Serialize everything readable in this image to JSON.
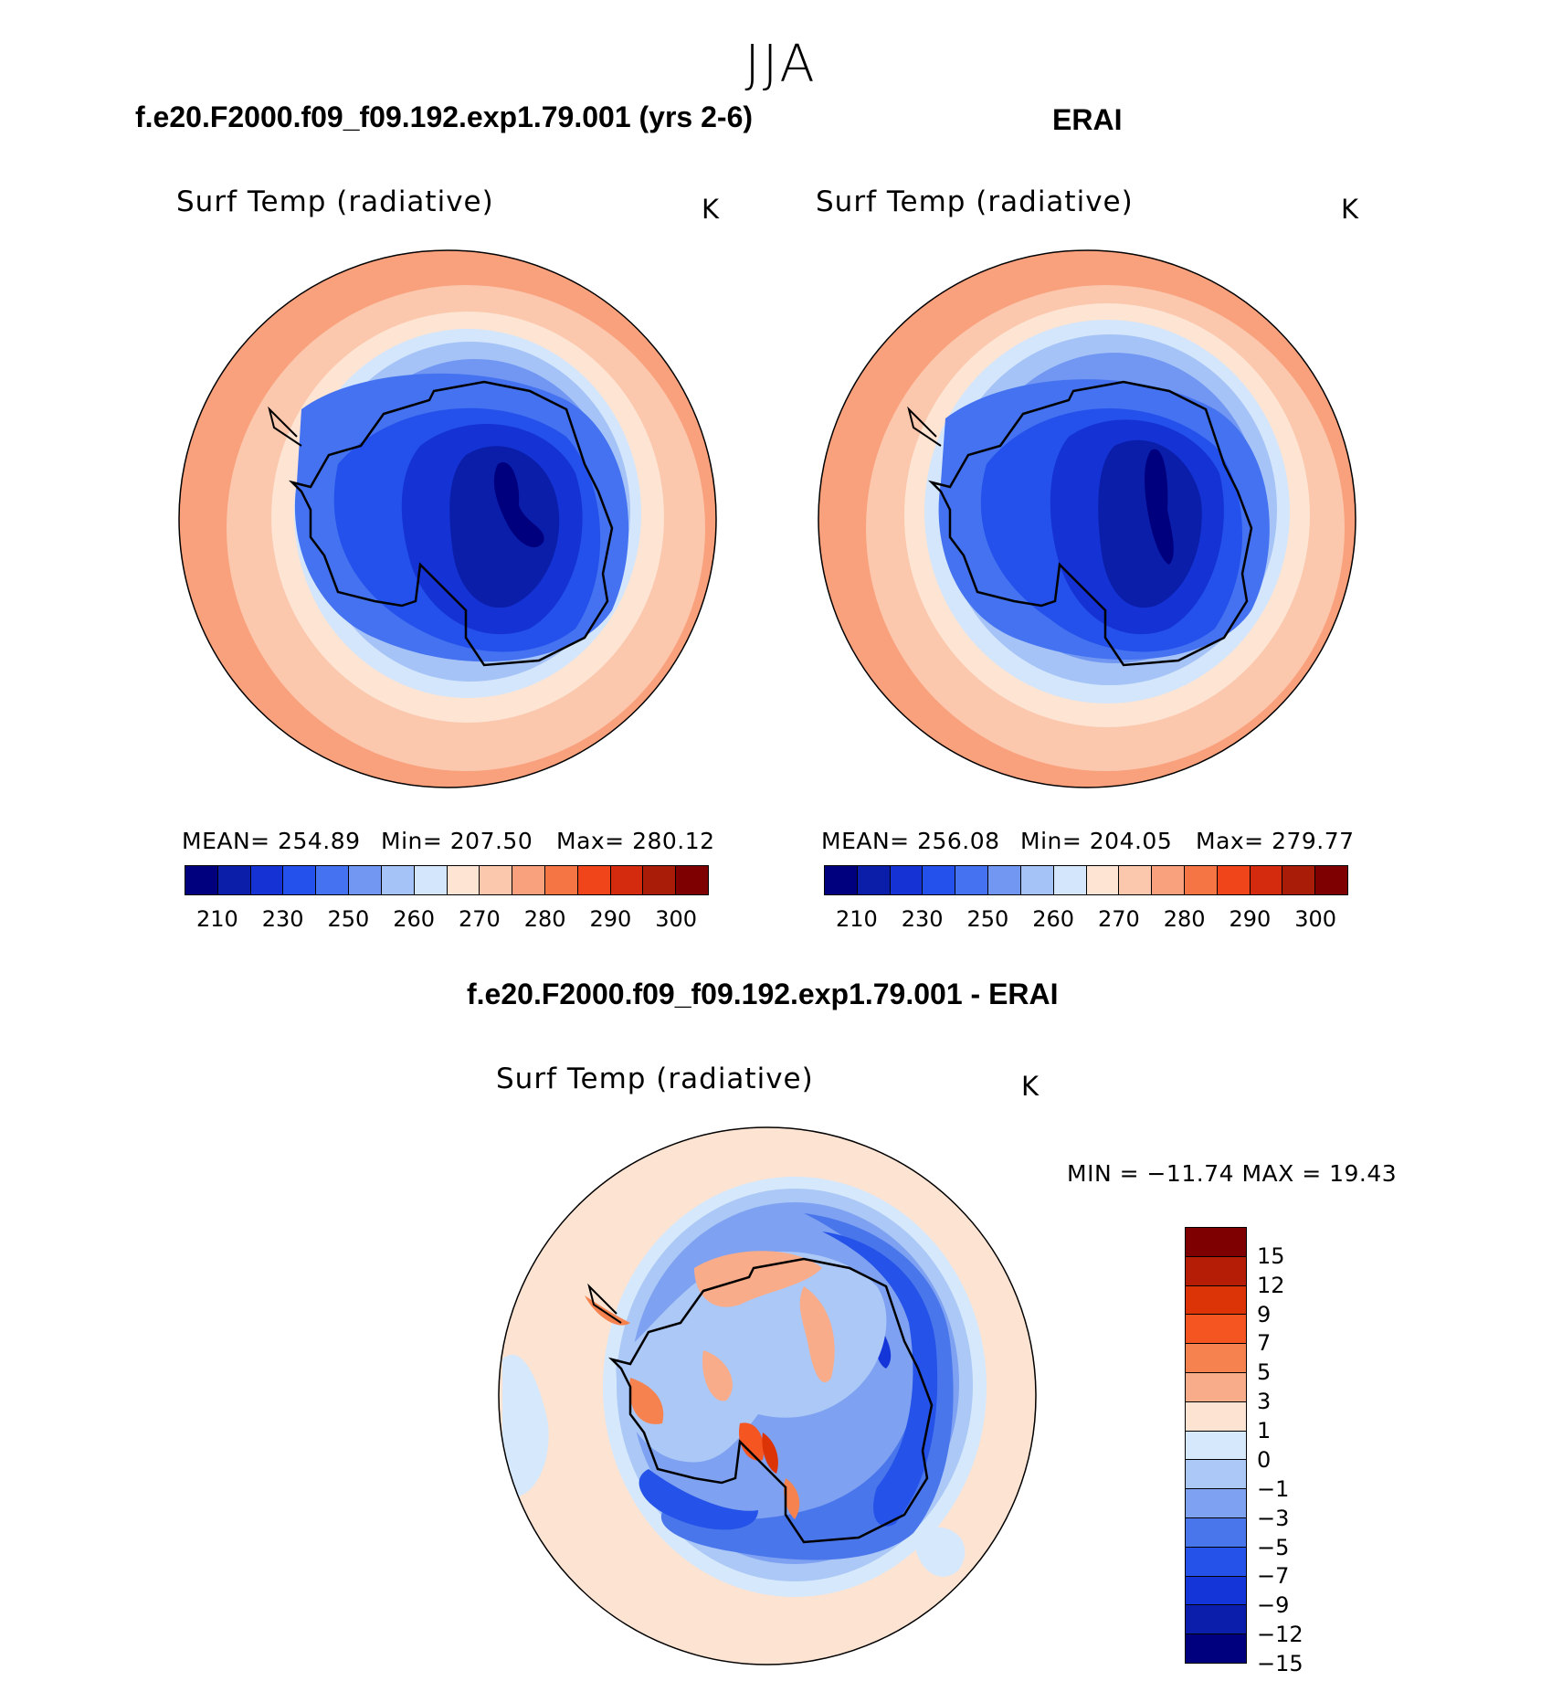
{
  "season": "JJA",
  "panel_model": {
    "case_title": "f.e20.F2000.f09_f09.192.exp1.79.001 (yrs 2-6)",
    "variable": "Surf Temp (radiative)",
    "units": "K",
    "stats": {
      "mean": "MEAN= 254.89",
      "min": "Min= 207.50",
      "max": "Max= 280.12"
    }
  },
  "panel_obs": {
    "case_title": "ERAI",
    "variable": "Surf Temp (radiative)",
    "units": "K",
    "stats": {
      "mean": "MEAN= 256.08",
      "min": "Min= 204.05",
      "max": "Max= 279.77"
    }
  },
  "panel_diff": {
    "case_title": "f.e20.F2000.f09_f09.192.exp1.79.001 - ERAI",
    "variable": "Surf Temp (radiative)",
    "units": "K",
    "minmax": "MIN = −11.74 MAX =   19.43"
  },
  "abs_colorbar": {
    "colors": [
      "#00007f",
      "#0a1eaa",
      "#1533d4",
      "#2451eb",
      "#4472f0",
      "#7197f2",
      "#a5c3f7",
      "#d4e6fb",
      "#fde4d3",
      "#fbc7ad",
      "#f9a07c",
      "#f57545",
      "#f0441a",
      "#d42a0d",
      "#a81c08",
      "#7f0000"
    ],
    "ticks": [
      "210",
      "230",
      "250",
      "260",
      "270",
      "280",
      "290",
      "300"
    ]
  },
  "diff_colorbar": {
    "colors": [
      "#7f0000",
      "#b51d07",
      "#dc3407",
      "#f45521",
      "#f6834f",
      "#f9ac8a",
      "#fde3d2",
      "#d6e8fb",
      "#abc8f6",
      "#7ea1f1",
      "#4a76ec",
      "#2552e8",
      "#1435d8",
      "#0a1eab",
      "#00007f"
    ],
    "ticks": [
      "15",
      "12",
      "9",
      "7",
      "5",
      "3",
      "1",
      "0",
      "−1",
      "−3",
      "−5",
      "−7",
      "−9",
      "−12",
      "−15"
    ]
  }
}
